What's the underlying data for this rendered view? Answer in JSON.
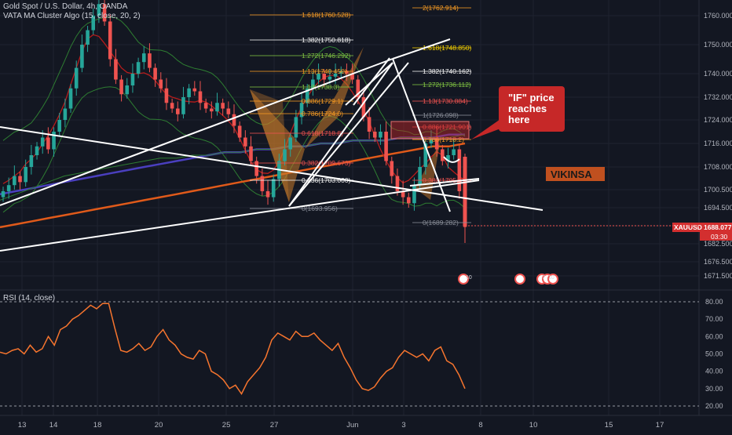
{
  "header": {
    "symbol_line": "Gold Spot / U.S. Dollar, 4h, OANDA",
    "indicator_line": "VATA MA Cluster Algo (15, close, 20, 2)"
  },
  "colors": {
    "background": "#131722",
    "grid": "#1f2330",
    "candle_up": "#26a69a",
    "candle_down": "#ef5350",
    "rsi": "#f7752e",
    "trendline": "#ffffff",
    "fib_orange": "#f59a23",
    "fib_green": "#7fc242",
    "fib_red": "#ef5350",
    "fib_gray": "#8a8e99",
    "pattern_fill": "#c97a2a",
    "annotation_box": "#c62828",
    "price_tag": "#d32f2f"
  },
  "chart_data": [
    {
      "type": "candlestick",
      "title": "Gold Spot / U.S. Dollar, 4h, OANDA",
      "overlay_label": "VATA MA Cluster Algo (15, close, 20, 2)",
      "x_ticks": [
        "13",
        "14",
        "18",
        "20",
        "25",
        "27",
        "Jun",
        "3",
        "8",
        "10",
        "15",
        "17"
      ],
      "y_ticks": [
        1671.5,
        1676.5,
        1682.5,
        1688.5,
        1694.5,
        1700.5,
        1708.0,
        1716.0,
        1724.0,
        1732.0,
        1740.0,
        1750.0,
        1760.0
      ],
      "y_tick_labels": [
        "1671.500",
        "1676.500",
        "1682.500",
        "1688.500",
        "1694.500",
        "1700.500",
        "1708.000",
        "1716.000",
        "1724.000",
        "1732.000",
        "1740.000",
        "1750.000",
        "1760.000"
      ],
      "ylim": [
        1668,
        1766
      ],
      "last_price_label": "XAUUSD",
      "last_price": "1688.077",
      "countdown": "03:30",
      "closes": [
        1700,
        1702,
        1705,
        1703,
        1708,
        1712,
        1715,
        1718,
        1714,
        1720,
        1724,
        1728,
        1735,
        1742,
        1750,
        1755,
        1760,
        1764,
        1758,
        1745,
        1738,
        1733,
        1736,
        1740,
        1744,
        1747,
        1742,
        1738,
        1735,
        1730,
        1728,
        1726,
        1732,
        1735,
        1734,
        1730,
        1728,
        1727,
        1730,
        1728,
        1726,
        1722,
        1718,
        1715,
        1710,
        1705,
        1700,
        1698,
        1704,
        1710,
        1714,
        1718,
        1725,
        1730,
        1735,
        1738,
        1740,
        1738,
        1739,
        1740,
        1741,
        1740,
        1738,
        1732,
        1725,
        1720,
        1718,
        1720,
        1710,
        1705,
        1700,
        1698,
        1696,
        1702,
        1708,
        1716,
        1718,
        1714,
        1710,
        1712,
        1714,
        1700,
        1688.077
      ],
      "moving_averages": [
        {
          "color": "#4a3fbf",
          "values": [
            1699,
            1700,
            1701,
            1702,
            1703,
            1704,
            1705,
            1706,
            1707,
            1708,
            1709,
            1710,
            1711,
            1712,
            1713,
            1713,
            1714,
            1714,
            1715,
            1715,
            1716,
            1716,
            1717,
            1717,
            1717,
            1718,
            1718,
            1718,
            1719,
            1719
          ]
        },
        {
          "color": "#e05a1a",
          "values": [
            1688,
            1689,
            1690,
            1691,
            1692,
            1693,
            1694,
            1695,
            1696,
            1697,
            1698,
            1699,
            1700,
            1701,
            1702,
            1703,
            1704,
            1705,
            1706,
            1707,
            1708,
            1709,
            1710,
            1711,
            1712,
            1713,
            1714,
            1715,
            1715,
            1716
          ]
        },
        {
          "color": "#2e7d32",
          "values": [
            1697,
            1699,
            1701,
            1703,
            1705,
            1706,
            1707,
            1708,
            1709,
            1710,
            1711,
            1711,
            1712,
            1712,
            1713,
            1713,
            1714,
            1714,
            1715,
            1715,
            1716,
            1716,
            1717,
            1717,
            1717,
            1718,
            1718,
            1718,
            1718,
            1719
          ]
        }
      ],
      "annotations": [
        {
          "text": "1.618(1760.528)",
          "color": "#f59a23"
        },
        {
          "text": "1.382(1750.818)",
          "color": "#f5f5f5"
        },
        {
          "text": "1.272(1746.292)",
          "color": "#7fc242"
        },
        {
          "text": "1.13(1740.450)",
          "color": "#f59a23"
        },
        {
          "text": "1.13(1738.3)",
          "color": "#7fc242"
        },
        {
          "text": "0.886(1729.1)",
          "color": "#f59a23"
        },
        {
          "text": "0.786(1724.0)",
          "color": "#f59a23"
        },
        {
          "text": "0.618(1718.8)",
          "color": "#ef5350"
        },
        {
          "text": "0.382(1709.673)",
          "color": "#ef5350"
        },
        {
          "text": "0.236(1703.000)",
          "color": "#f5f5f5"
        },
        {
          "text": "0(1693.956)",
          "color": "#8a8e99"
        },
        {
          "text": "2(1762.914)",
          "color": "#f59a23"
        },
        {
          "text": "1.618(1748.850)",
          "color": "#f5d000"
        },
        {
          "text": "1.382(1740.162)",
          "color": "#f5f5f5"
        },
        {
          "text": "1.272(1736.112)",
          "color": "#7fc242"
        },
        {
          "text": "1.13(1730.884)",
          "color": "#ef5350"
        },
        {
          "text": "1(1726.098)",
          "color": "#8a8e99"
        },
        {
          "text": "0.886(1721.901)",
          "color": "#ef5350"
        },
        {
          "text": "0.786(1718.2)",
          "color": "#f59a23"
        },
        {
          "text": "0.382(1705.3)",
          "color": "#ef5350"
        },
        {
          "text": "0(1689.282)",
          "color": "#8a8e99"
        }
      ],
      "callout": "\"IF\" price reaches here",
      "watermark": "VIKINSA",
      "event_markers": [
        "10",
        "7",
        "10"
      ]
    },
    {
      "type": "line",
      "title": "RSI (14, close)",
      "x_ticks": [
        "13",
        "14",
        "18",
        "20",
        "25",
        "27",
        "Jun",
        "3",
        "8",
        "10",
        "15",
        "17"
      ],
      "y_ticks": [
        20,
        30,
        40,
        50,
        60,
        70,
        80
      ],
      "y_tick_labels": [
        "20.00",
        "30.00",
        "40.00",
        "50.00",
        "60.00",
        "70.00",
        "80.00"
      ],
      "ylim": [
        16,
        86
      ],
      "levels": [
        80,
        20
      ],
      "series": [
        {
          "values": [
            51,
            50,
            52,
            53,
            50,
            55,
            51,
            53,
            60,
            55,
            64,
            66,
            70,
            72,
            75,
            78,
            76,
            79,
            79,
            65,
            52,
            51,
            53,
            56,
            52,
            54,
            60,
            64,
            58,
            55,
            50,
            48,
            47,
            52,
            50,
            40,
            38,
            35,
            30,
            32,
            27,
            34,
            38,
            42,
            48,
            58,
            62,
            60,
            58,
            63,
            60,
            60,
            62,
            58,
            55,
            52,
            56,
            48,
            42,
            35,
            30,
            29,
            31,
            36,
            40,
            42,
            48,
            52,
            50,
            48,
            50,
            46,
            52,
            54,
            46,
            44,
            38,
            30
          ]
        }
      ]
    }
  ]
}
